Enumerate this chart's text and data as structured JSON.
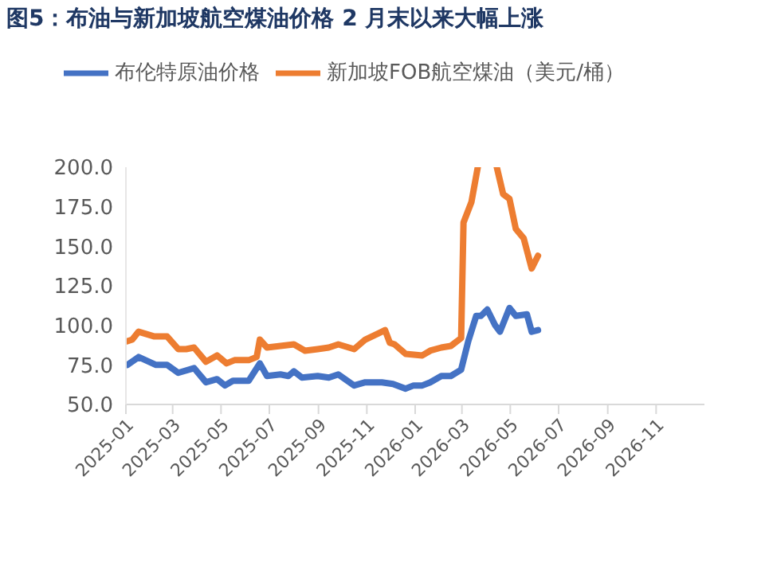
{
  "chart_data": {
    "type": "line",
    "title": "图5：布油与新加坡航空煤油价格 2 月末以来大幅上涨",
    "series": [
      {
        "name": "布伦特原油价格",
        "color": "#4472c4",
        "x": [
          "2025-01-03",
          "2025-01-17",
          "2025-02-08",
          "2025-02-22",
          "2025-03-08",
          "2025-03-28",
          "2025-04-12",
          "2025-04-26",
          "2025-05-06",
          "2025-05-16",
          "2025-06-05",
          "2025-06-19",
          "2025-06-28",
          "2025-07-15",
          "2025-07-25",
          "2025-08-01",
          "2025-08-11",
          "2025-08-31",
          "2025-09-14",
          "2025-09-26",
          "2025-10-16",
          "2025-10-30",
          "2025-11-20",
          "2025-12-04",
          "2025-12-20",
          "2025-12-30",
          "2026-01-10",
          "2026-01-20",
          "2026-02-03",
          "2026-02-15",
          "2026-02-28",
          "2026-03-09",
          "2026-03-19",
          "2026-03-25",
          "2026-04-02",
          "2026-04-12",
          "2026-04-18",
          "2026-04-30",
          "2026-05-08",
          "2026-05-22",
          "2026-05-28",
          "2026-06-05"
        ],
        "values": [
          75,
          80,
          75,
          75,
          70,
          73,
          64,
          66,
          62,
          65,
          65,
          76,
          68,
          69,
          68,
          71,
          67,
          68,
          67,
          69,
          62,
          64,
          64,
          63,
          60,
          62,
          62,
          64,
          68,
          68,
          72,
          90,
          106,
          106,
          110,
          100,
          96,
          111,
          106,
          107,
          96,
          97
        ]
      },
      {
        "name": "新加坡FOB航空煤油（美元/桶）",
        "color": "#ed7d31",
        "x": [
          "2025-01-03",
          "2025-01-09",
          "2025-01-17",
          "2025-02-06",
          "2025-02-22",
          "2025-03-08",
          "2025-03-18",
          "2025-03-28",
          "2025-04-12",
          "2025-04-26",
          "2025-05-08",
          "2025-05-18",
          "2025-06-05",
          "2025-06-15",
          "2025-06-19",
          "2025-06-28",
          "2025-07-15",
          "2025-08-01",
          "2025-08-15",
          "2025-08-31",
          "2025-09-14",
          "2025-09-26",
          "2025-10-16",
          "2025-10-30",
          "2025-11-20",
          "2025-11-24",
          "2025-11-30",
          "2025-12-06",
          "2025-12-20",
          "2026-01-10",
          "2026-01-20",
          "2026-02-03",
          "2026-02-15",
          "2026-02-28",
          "2026-03-03",
          "2026-03-13",
          "2026-03-21",
          "2026-04-02",
          "2026-04-14",
          "2026-04-22",
          "2026-04-30",
          "2026-05-08",
          "2026-05-18",
          "2026-05-28",
          "2026-06-05"
        ],
        "values": [
          90,
          91,
          96,
          93,
          93,
          85,
          85,
          86,
          77,
          81,
          76,
          78,
          78,
          80,
          91,
          86,
          87,
          88,
          84,
          85,
          86,
          88,
          85,
          91,
          96,
          97,
          89,
          88,
          82,
          81,
          84,
          86,
          87,
          92,
          165,
          178,
          200,
          null,
          200,
          183,
          180,
          161,
          155,
          136,
          144
        ]
      }
    ],
    "xlim": [
      "2025-01-01",
      "2027-01-01"
    ],
    "xticks": [
      "2025-01",
      "2025-03",
      "2025-05",
      "2025-07",
      "2025-09",
      "2025-11",
      "2026-01",
      "2026-03",
      "2026-05",
      "2026-07",
      "2026-09",
      "2026-11"
    ],
    "ylim": [
      50,
      200
    ],
    "yticks": [
      {
        "value": 50,
        "label": "50.0"
      },
      {
        "value": 75,
        "label": "75.0"
      },
      {
        "value": 100,
        "label": "100.0"
      },
      {
        "value": 125,
        "label": "125.0"
      },
      {
        "value": 150,
        "label": "150.0"
      },
      {
        "value": 175,
        "label": "175.0"
      },
      {
        "value": 200,
        "label": "200.0"
      }
    ],
    "legend": "top",
    "marker": "none",
    "line_style": "solid"
  }
}
